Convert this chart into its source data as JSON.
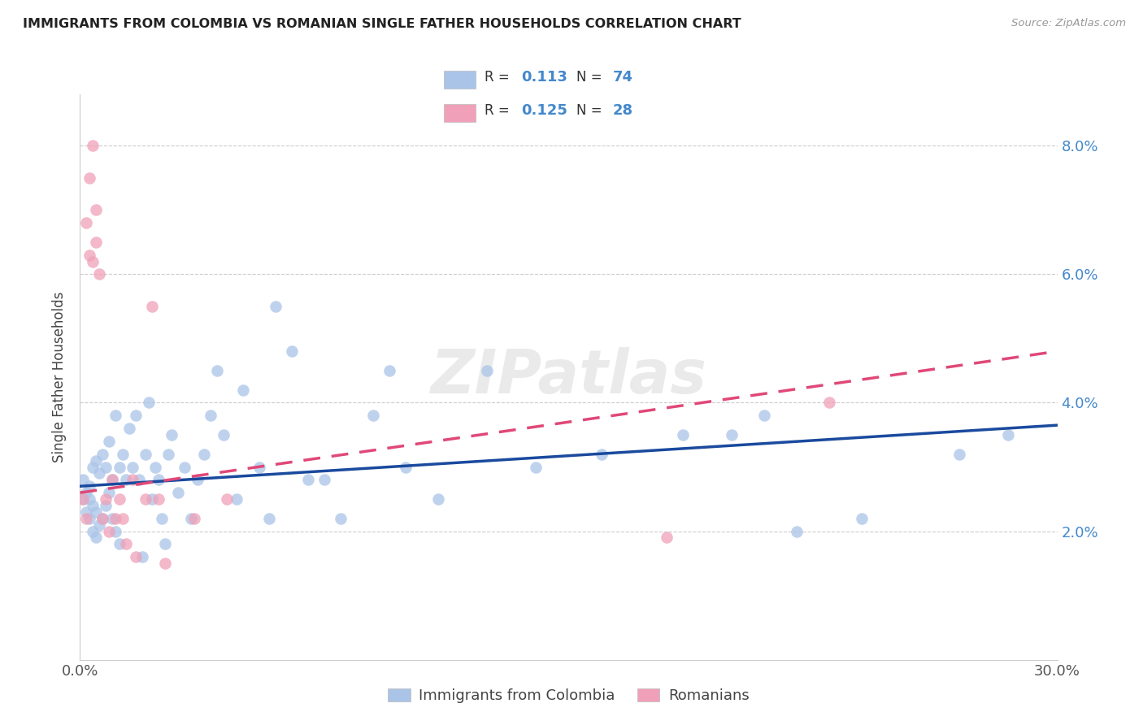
{
  "title": "IMMIGRANTS FROM COLOMBIA VS ROMANIAN SINGLE FATHER HOUSEHOLDS CORRELATION CHART",
  "source": "Source: ZipAtlas.com",
  "ylabel": "Single Father Households",
  "xlim": [
    0.0,
    0.3
  ],
  "ylim": [
    0.0,
    0.088
  ],
  "xticks": [
    0.0,
    0.05,
    0.1,
    0.15,
    0.2,
    0.25,
    0.3
  ],
  "yticks": [
    0.0,
    0.02,
    0.04,
    0.06,
    0.08
  ],
  "colombia_color": "#aac4e8",
  "romania_color": "#f0a0b8",
  "colombia_line_color": "#1a4a9e",
  "romania_line_color": "#e04878",
  "colombia_R": "0.113",
  "colombia_N": "74",
  "romania_R": "0.125",
  "romania_N": "28",
  "legend_label_colombia": "Immigrants from Colombia",
  "legend_label_romania": "Romanians",
  "colombia_x": [
    0.001,
    0.001,
    0.002,
    0.002,
    0.003,
    0.003,
    0.003,
    0.004,
    0.004,
    0.004,
    0.005,
    0.005,
    0.005,
    0.006,
    0.006,
    0.007,
    0.007,
    0.008,
    0.008,
    0.009,
    0.009,
    0.01,
    0.01,
    0.011,
    0.011,
    0.012,
    0.012,
    0.013,
    0.014,
    0.015,
    0.016,
    0.017,
    0.018,
    0.019,
    0.02,
    0.021,
    0.022,
    0.023,
    0.024,
    0.025,
    0.026,
    0.027,
    0.028,
    0.03,
    0.032,
    0.034,
    0.036,
    0.038,
    0.04,
    0.042,
    0.044,
    0.048,
    0.05,
    0.055,
    0.058,
    0.06,
    0.065,
    0.07,
    0.075,
    0.08,
    0.09,
    0.095,
    0.1,
    0.11,
    0.125,
    0.14,
    0.16,
    0.185,
    0.2,
    0.21,
    0.22,
    0.24,
    0.27,
    0.285
  ],
  "colombia_y": [
    0.028,
    0.025,
    0.023,
    0.026,
    0.022,
    0.025,
    0.027,
    0.02,
    0.024,
    0.03,
    0.019,
    0.023,
    0.031,
    0.021,
    0.029,
    0.022,
    0.032,
    0.024,
    0.03,
    0.026,
    0.034,
    0.022,
    0.028,
    0.02,
    0.038,
    0.03,
    0.018,
    0.032,
    0.028,
    0.036,
    0.03,
    0.038,
    0.028,
    0.016,
    0.032,
    0.04,
    0.025,
    0.03,
    0.028,
    0.022,
    0.018,
    0.032,
    0.035,
    0.026,
    0.03,
    0.022,
    0.028,
    0.032,
    0.038,
    0.045,
    0.035,
    0.025,
    0.042,
    0.03,
    0.022,
    0.055,
    0.048,
    0.028,
    0.028,
    0.022,
    0.038,
    0.045,
    0.03,
    0.025,
    0.045,
    0.03,
    0.032,
    0.035,
    0.035,
    0.038,
    0.02,
    0.022,
    0.032,
    0.035
  ],
  "romania_x": [
    0.001,
    0.002,
    0.002,
    0.003,
    0.003,
    0.004,
    0.004,
    0.005,
    0.005,
    0.006,
    0.007,
    0.008,
    0.009,
    0.01,
    0.011,
    0.012,
    0.013,
    0.014,
    0.016,
    0.017,
    0.02,
    0.022,
    0.024,
    0.026,
    0.035,
    0.045,
    0.18,
    0.23
  ],
  "romania_y": [
    0.025,
    0.022,
    0.068,
    0.063,
    0.075,
    0.08,
    0.062,
    0.065,
    0.07,
    0.06,
    0.022,
    0.025,
    0.02,
    0.028,
    0.022,
    0.025,
    0.022,
    0.018,
    0.028,
    0.016,
    0.025,
    0.055,
    0.025,
    0.015,
    0.022,
    0.025,
    0.019,
    0.04
  ],
  "colombia_line_x": [
    0.0,
    0.3
  ],
  "colombia_line_y": [
    0.027,
    0.0365
  ],
  "romania_line_x": [
    0.0,
    0.3
  ],
  "romania_line_y": [
    0.026,
    0.048
  ]
}
